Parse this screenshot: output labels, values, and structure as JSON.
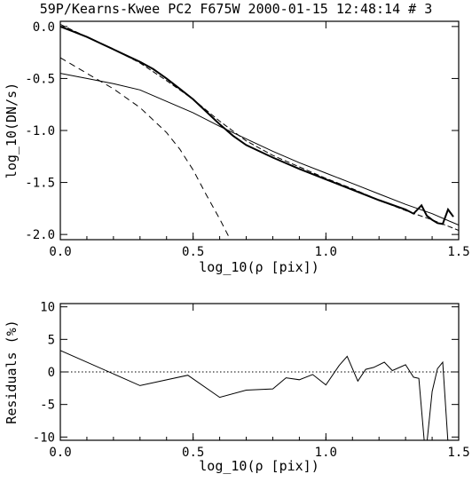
{
  "title": "59P/Kearns-Kwee PC2 F675W 2000-01-15 12:48:14 # 3",
  "chart_data": [
    {
      "type": "line",
      "xlabel": "log_10(ρ [pix])",
      "ylabel": "log_10(DN/s)",
      "xlim": [
        0.0,
        1.5
      ],
      "ylim": [
        -2.05,
        0.05
      ],
      "xticks": [
        "0.0",
        "0.5",
        "1.0",
        "1.5"
      ],
      "xtick_values": [
        0.0,
        0.5,
        1.0,
        1.5
      ],
      "yticks": [
        "0.0",
        "-0.5",
        "-1.0",
        "-1.5",
        "-2.0"
      ],
      "ytick_values": [
        0.0,
        -0.5,
        -1.0,
        -1.5,
        -2.0
      ],
      "series": [
        {
          "style": "thick-solid",
          "x": [
            0.0,
            0.05,
            0.1,
            0.15,
            0.2,
            0.25,
            0.3,
            0.35,
            0.4,
            0.45,
            0.5,
            0.55,
            0.6,
            0.65,
            0.7,
            0.8,
            0.9,
            1.0,
            1.1,
            1.2,
            1.3,
            1.33,
            1.36,
            1.38,
            1.4,
            1.42,
            1.44,
            1.46,
            1.48
          ],
          "y": [
            0.0,
            -0.05,
            -0.1,
            -0.16,
            -0.22,
            -0.28,
            -0.34,
            -0.41,
            -0.5,
            -0.6,
            -0.7,
            -0.82,
            -0.94,
            -1.05,
            -1.14,
            -1.26,
            -1.37,
            -1.47,
            -1.57,
            -1.67,
            -1.76,
            -1.8,
            -1.72,
            -1.82,
            -1.86,
            -1.89,
            -1.9,
            -1.76,
            -1.83
          ]
        },
        {
          "style": "dashed-total",
          "x": [
            0.0,
            0.1,
            0.2,
            0.3,
            0.4,
            0.5,
            0.6,
            0.7,
            0.8,
            0.9,
            1.0,
            1.1,
            1.2,
            1.3,
            1.4,
            1.5
          ],
          "y": [
            0.02,
            -0.1,
            -0.22,
            -0.35,
            -0.52,
            -0.7,
            -0.91,
            -1.1,
            -1.24,
            -1.35,
            -1.46,
            -1.56,
            -1.67,
            -1.77,
            -1.86,
            -1.96
          ]
        },
        {
          "style": "thin-solid",
          "x": [
            0.0,
            0.1,
            0.2,
            0.3,
            0.4,
            0.5,
            0.6,
            0.7,
            0.8,
            0.9,
            1.0,
            1.1,
            1.2,
            1.3,
            1.4,
            1.5
          ],
          "y": [
            -0.45,
            -0.5,
            -0.55,
            -0.61,
            -0.72,
            -0.83,
            -0.96,
            -1.08,
            -1.2,
            -1.31,
            -1.41,
            -1.51,
            -1.61,
            -1.71,
            -1.8,
            -1.91
          ]
        },
        {
          "style": "dashed",
          "x": [
            0.0,
            0.1,
            0.2,
            0.3,
            0.4,
            0.45,
            0.5,
            0.55,
            0.6,
            0.62,
            0.64
          ],
          "y": [
            -0.3,
            -0.45,
            -0.6,
            -0.78,
            -1.02,
            -1.18,
            -1.38,
            -1.62,
            -1.85,
            -1.95,
            -2.05
          ]
        }
      ]
    },
    {
      "type": "line",
      "xlabel": "log_10(ρ [pix])",
      "ylabel": "Residuals (%)",
      "xlim": [
        0.0,
        1.5
      ],
      "ylim": [
        -10.5,
        10.5
      ],
      "xticks": [
        "0.0",
        "0.5",
        "1.0",
        "1.5"
      ],
      "xtick_values": [
        0.0,
        0.5,
        1.0,
        1.5
      ],
      "yticks": [
        "10",
        "5",
        "0",
        "-5",
        "-10"
      ],
      "ytick_values": [
        10,
        5,
        0,
        -5,
        -10
      ],
      "reference_line": 0,
      "series": [
        {
          "style": "thin-solid",
          "x": [
            0.0,
            0.3,
            0.48,
            0.6,
            0.7,
            0.8,
            0.85,
            0.9,
            0.95,
            1.0,
            1.05,
            1.08,
            1.12,
            1.15,
            1.18,
            1.22,
            1.25,
            1.3,
            1.33,
            1.35,
            1.37,
            1.38,
            1.4,
            1.42,
            1.44,
            1.46
          ],
          "y": [
            3.3,
            -2.1,
            -0.5,
            -3.9,
            -2.8,
            -2.6,
            -0.9,
            -1.2,
            -0.4,
            -2.0,
            1.0,
            2.4,
            -1.4,
            0.4,
            0.7,
            1.5,
            0.2,
            1.1,
            -0.8,
            -1.0,
            -10.5,
            -11,
            -3,
            0.5,
            1.5,
            -11
          ]
        }
      ]
    }
  ]
}
